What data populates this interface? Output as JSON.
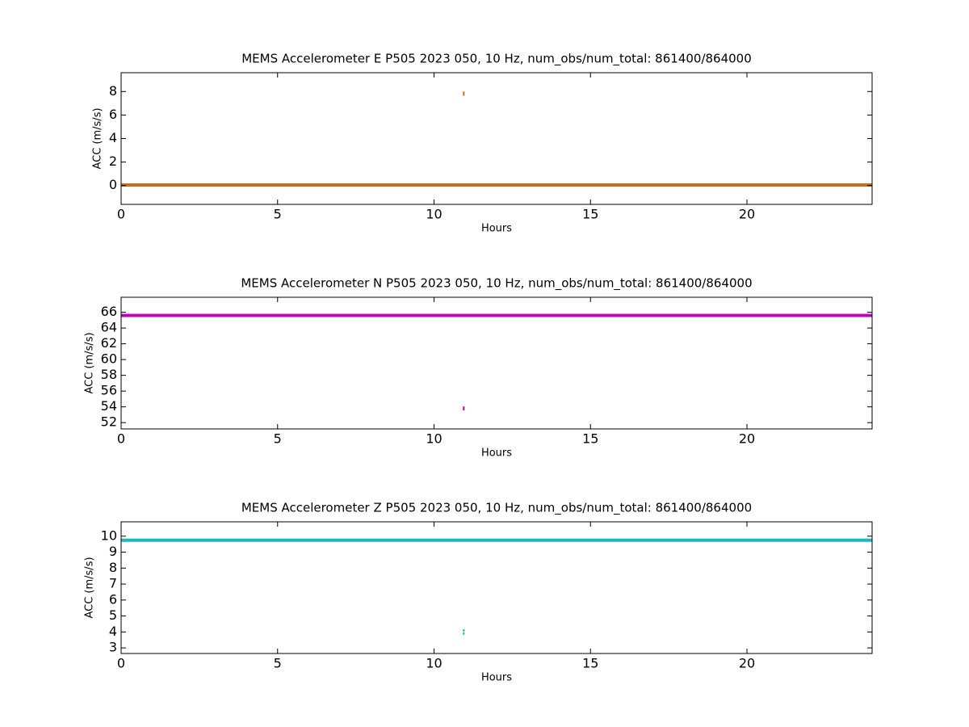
{
  "chart_data": [
    {
      "type": "line",
      "title": "MEMS Accelerometer E P505 2023 050, 10 Hz, num_obs/num_total: 861400/864000",
      "xlabel": "Hours",
      "ylabel": "ACC (m/s/s)",
      "x": [
        0,
        10.95,
        24,
        10.95,
        10.95,
        10.95,
        10.95
      ],
      "values": [
        0.05,
        0.05,
        0.05,
        null,
        7.9,
        null,
        7.75
      ],
      "color": "#d2691e",
      "xlim": [
        0,
        24
      ],
      "ylim": [
        -1.6,
        9.6
      ],
      "xticks": [
        0,
        5,
        10,
        15,
        20
      ],
      "yticks": [
        0,
        2,
        4,
        6,
        8
      ]
    },
    {
      "type": "line",
      "title": "MEMS Accelerometer N P505 2023 050, 10 Hz, num_obs/num_total: 861400/864000",
      "xlabel": "Hours",
      "ylabel": "ACC (m/s/s)",
      "x": [
        0,
        10.95,
        24,
        10.95,
        10.95,
        10.95,
        10.95
      ],
      "values": [
        65.6,
        65.6,
        65.6,
        null,
        53.9,
        null,
        53.7
      ],
      "color": "#b40ab4",
      "xlim": [
        0,
        24
      ],
      "ylim": [
        51.2,
        67.9
      ],
      "xticks": [
        0,
        5,
        10,
        15,
        20
      ],
      "yticks": [
        52,
        54,
        56,
        58,
        60,
        62,
        64,
        66
      ]
    },
    {
      "type": "line",
      "title": "MEMS Accelerometer Z P505 2023 050, 10 Hz, num_obs/num_total: 861400/864000",
      "xlabel": "Hours",
      "ylabel": "ACC (m/s/s)",
      "x": [
        0,
        10.95,
        24,
        10.95,
        10.95,
        10.95,
        10.95
      ],
      "values": [
        9.75,
        9.75,
        9.75,
        null,
        4.1,
        null,
        3.9
      ],
      "color": "#17b8bf",
      "xlim": [
        0,
        24
      ],
      "ylim": [
        2.65,
        10.9
      ],
      "xticks": [
        0,
        5,
        10,
        15,
        20
      ],
      "yticks": [
        3,
        4,
        5,
        6,
        7,
        8,
        9,
        10
      ]
    }
  ]
}
